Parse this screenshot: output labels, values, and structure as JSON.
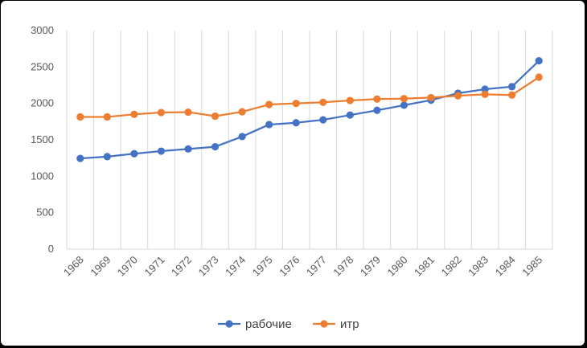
{
  "chart_data": {
    "type": "line",
    "title": "",
    "xlabel": "",
    "ylabel": "",
    "ylim": [
      0,
      3000
    ],
    "yticks": [
      0,
      500,
      1000,
      1500,
      2000,
      2500,
      3000
    ],
    "ytick_labels": [
      "0",
      "500",
      "1000",
      "1500",
      "2000",
      "2500",
      "3000"
    ],
    "grid": "vertical",
    "legend_position": "bottom",
    "categories": [
      "1968",
      "1969",
      "1970",
      "1971",
      "1972",
      "1973",
      "1974",
      "1975",
      "1976",
      "1977",
      "1978",
      "1979",
      "1980",
      "1981",
      "1982",
      "1983",
      "1984",
      "1985"
    ],
    "series": [
      {
        "name": "рабочие",
        "color": "#4472C4",
        "values": [
          1245,
          1270,
          1310,
          1345,
          1375,
          1405,
          1545,
          1710,
          1735,
          1775,
          1840,
          1905,
          1975,
          2045,
          2140,
          2195,
          2230,
          2585
        ]
      },
      {
        "name": "итр",
        "color": "#ED7D31",
        "values": [
          1815,
          1815,
          1850,
          1875,
          1880,
          1825,
          1885,
          1985,
          2000,
          2015,
          2040,
          2060,
          2065,
          2080,
          2105,
          2125,
          2115,
          2360
        ]
      }
    ]
  }
}
